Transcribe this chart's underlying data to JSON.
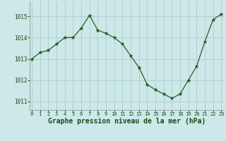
{
  "x": [
    0,
    1,
    2,
    3,
    4,
    5,
    6,
    7,
    8,
    9,
    10,
    11,
    12,
    13,
    14,
    15,
    16,
    17,
    18,
    19,
    20,
    21,
    22,
    23
  ],
  "y": [
    1013.0,
    1013.3,
    1013.4,
    1013.7,
    1014.0,
    1014.0,
    1014.45,
    1015.05,
    1014.35,
    1014.2,
    1014.0,
    1013.7,
    1013.15,
    1012.6,
    1011.8,
    1011.55,
    1011.35,
    1011.15,
    1011.35,
    1012.0,
    1012.65,
    1013.8,
    1014.85,
    1015.1
  ],
  "line_color": "#2d5a27",
  "marker": "*",
  "marker_size": 3.5,
  "bg_color": "#cce8e8",
  "grid_color": "#b0d0d0",
  "xlabel": "Graphe pression niveau de la mer (hPa)",
  "yticks": [
    1011,
    1012,
    1013,
    1014,
    1015
  ],
  "xticks": [
    0,
    1,
    2,
    3,
    4,
    5,
    6,
    7,
    8,
    9,
    10,
    11,
    12,
    13,
    14,
    15,
    16,
    17,
    18,
    19,
    20,
    21,
    22,
    23
  ],
  "ylim": [
    1010.6,
    1015.7
  ],
  "xlim": [
    -0.3,
    23.3
  ]
}
